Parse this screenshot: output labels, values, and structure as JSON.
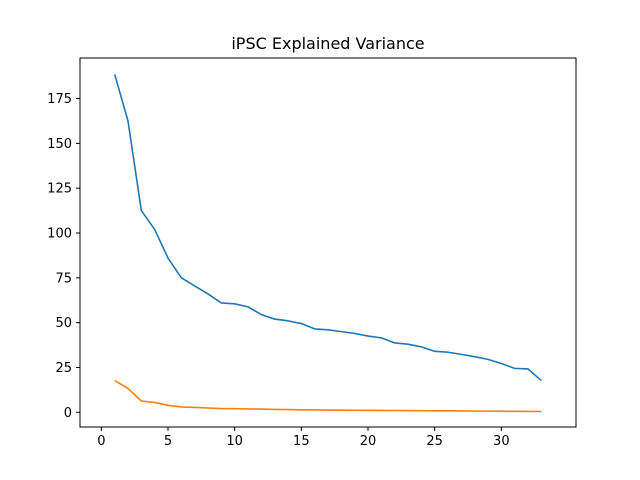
{
  "chart_data": {
    "type": "line",
    "title": "iPSC Explained Variance",
    "xlabel": "",
    "ylabel": "",
    "xlim": [
      -1.6,
      35.6
    ],
    "ylim": [
      -8.2,
      197.6
    ],
    "xticks": [
      0,
      5,
      10,
      15,
      20,
      25,
      30
    ],
    "yticks": [
      0,
      25,
      50,
      75,
      100,
      125,
      150,
      175
    ],
    "grid": false,
    "x": [
      1,
      2,
      3,
      4,
      5,
      6,
      7,
      8,
      9,
      10,
      11,
      12,
      13,
      14,
      15,
      16,
      17,
      18,
      19,
      20,
      21,
      22,
      23,
      24,
      25,
      26,
      27,
      28,
      29,
      30,
      31,
      32,
      33
    ],
    "series": [
      {
        "color": "#1f77b4",
        "values": [
          188.5,
          162.5,
          112.5,
          102,
          86,
          75,
          70.5,
          66,
          61,
          60.5,
          58.8,
          54.5,
          52,
          51,
          49.5,
          46.5,
          46,
          45,
          44,
          42.5,
          41.5,
          38.7,
          38,
          36.5,
          34,
          33.5,
          32.3,
          31,
          29.5,
          27.2,
          24.5,
          24.2,
          17.7
        ]
      },
      {
        "color": "#ff7f0e",
        "values": [
          17.7,
          13.3,
          6.3,
          5.5,
          3.9,
          3,
          2.7,
          2.4,
          2.1,
          2,
          1.9,
          1.8,
          1.6,
          1.5,
          1.4,
          1.3,
          1.25,
          1.2,
          1.15,
          1.1,
          1.05,
          1,
          0.95,
          0.9,
          0.85,
          0.8,
          0.75,
          0.7,
          0.65,
          0.6,
          0.55,
          0.5,
          0.45
        ]
      }
    ]
  }
}
